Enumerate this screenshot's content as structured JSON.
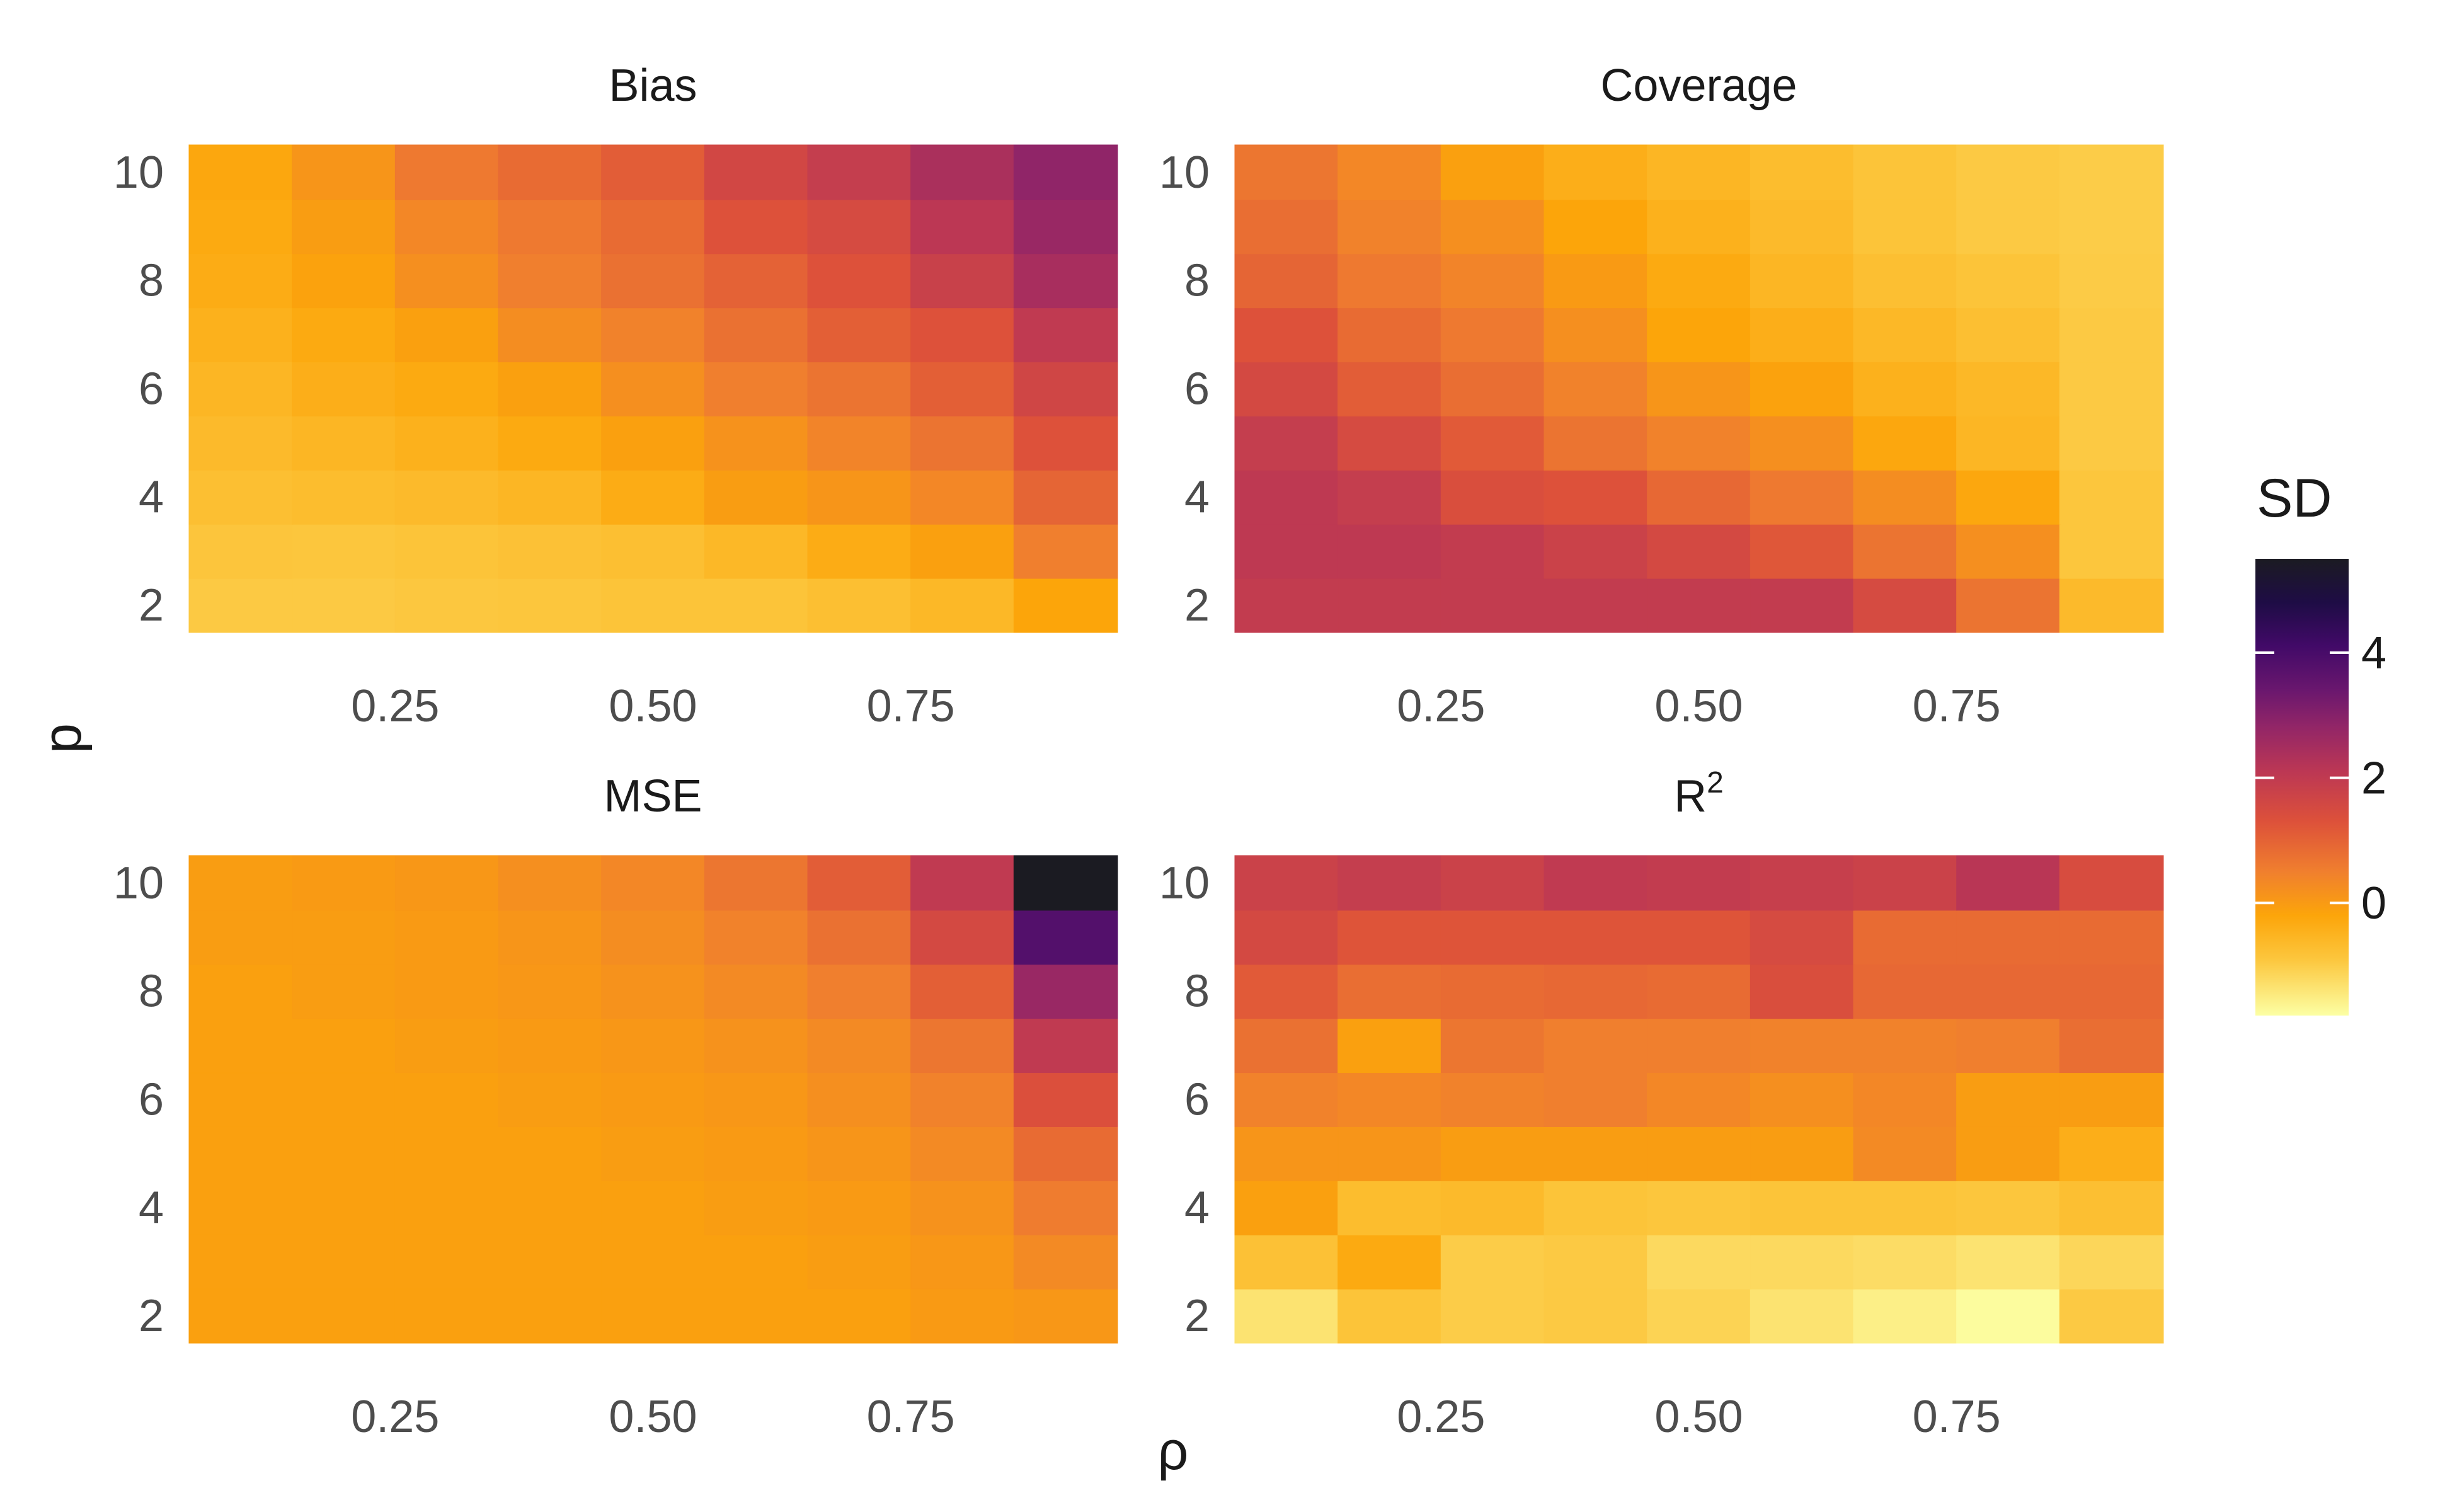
{
  "chart_data": {
    "type": "heatmap",
    "xlabel": "ρ",
    "ylabel": "p",
    "x": [
      0.1,
      0.2,
      0.3,
      0.4,
      0.5,
      0.6,
      0.7,
      0.8,
      0.9
    ],
    "y": [
      2,
      3,
      4,
      5,
      6,
      7,
      8,
      9,
      10
    ],
    "xticks": [
      0.25,
      0.5,
      0.75
    ],
    "xtick_labels": [
      "0.25",
      "0.50",
      "0.75"
    ],
    "yticks": [
      2,
      4,
      6,
      8,
      10
    ],
    "ytick_labels": [
      "2",
      "4",
      "6",
      "8",
      "10"
    ],
    "xlim": [
      0.05,
      0.95
    ],
    "ylim": [
      1.5,
      10.5
    ],
    "legend": {
      "title": "SD",
      "position": "right",
      "min": -1.8,
      "max": 5.5,
      "ticks": [
        0,
        2,
        4
      ],
      "tick_labels": [
        "0",
        "2",
        "4"
      ],
      "colors": [
        "#FCFFA4",
        "#FCC63D",
        "#FCA50A",
        "#F07F2E",
        "#DD513A",
        "#BC3754",
        "#932667",
        "#6A176E",
        "#420A68",
        "#1E0C45",
        "#1B1B22"
      ],
      "stops": [
        -1.8,
        -0.9,
        -0.2,
        0.5,
        1.3,
        2.1,
        2.8,
        3.4,
        4.1,
        4.8,
        5.5
      ]
    },
    "panels": [
      {
        "title": "Bias",
        "values": [
          [
            -0.95,
            -0.95,
            -0.92,
            -0.9,
            -0.85,
            -0.85,
            -0.75,
            -0.6,
            -0.2
          ],
          [
            -0.88,
            -0.9,
            -0.85,
            -0.8,
            -0.75,
            -0.6,
            -0.35,
            -0.1,
            0.5
          ],
          [
            -0.75,
            -0.7,
            -0.65,
            -0.55,
            -0.35,
            -0.05,
            0.1,
            0.35,
            0.95
          ],
          [
            -0.65,
            -0.55,
            -0.45,
            -0.3,
            -0.1,
            0.15,
            0.4,
            0.7,
            1.3
          ],
          [
            -0.55,
            -0.4,
            -0.3,
            -0.1,
            0.2,
            0.5,
            0.7,
            1.05,
            1.65
          ],
          [
            -0.45,
            -0.3,
            -0.1,
            0.25,
            0.45,
            0.75,
            1.05,
            1.3,
            2.0
          ],
          [
            -0.35,
            -0.15,
            0.2,
            0.5,
            0.75,
            1.0,
            1.3,
            1.8,
            2.45
          ],
          [
            -0.3,
            -0.05,
            0.35,
            0.6,
            0.85,
            1.3,
            1.5,
            2.1,
            2.7
          ],
          [
            -0.25,
            0.1,
            0.6,
            0.85,
            1.1,
            1.6,
            1.9,
            2.4,
            2.85
          ]
        ]
      },
      {
        "title": "Coverage",
        "values": [
          [
            1.95,
            1.95,
            1.95,
            1.95,
            1.95,
            1.95,
            1.5,
            0.7,
            -0.65
          ],
          [
            2.05,
            2.05,
            1.95,
            1.75,
            1.55,
            1.2,
            0.7,
            0.2,
            -0.9
          ],
          [
            2.05,
            1.9,
            1.4,
            1.3,
            0.9,
            0.6,
            0.25,
            -0.25,
            -0.9
          ],
          [
            1.9,
            1.5,
            1.15,
            0.7,
            0.45,
            0.2,
            -0.25,
            -0.55,
            -0.95
          ],
          [
            1.55,
            1.1,
            0.8,
            0.45,
            0.1,
            -0.15,
            -0.45,
            -0.6,
            -0.95
          ],
          [
            1.3,
            0.85,
            0.6,
            0.2,
            -0.2,
            -0.4,
            -0.6,
            -0.75,
            -0.95
          ],
          [
            0.95,
            0.6,
            0.4,
            0.0,
            -0.3,
            -0.55,
            -0.75,
            -0.85,
            -0.98
          ],
          [
            0.8,
            0.45,
            0.2,
            -0.2,
            -0.45,
            -0.65,
            -0.85,
            -0.95,
            -1.0
          ],
          [
            0.65,
            0.35,
            -0.1,
            -0.4,
            -0.55,
            -0.7,
            -0.85,
            -0.95,
            -1.0
          ]
        ]
      },
      {
        "title": "MSE",
        "values": [
          [
            -0.1,
            -0.1,
            -0.1,
            -0.1,
            -0.1,
            -0.1,
            -0.1,
            0.0,
            0.05
          ],
          [
            -0.1,
            -0.1,
            -0.1,
            -0.1,
            -0.1,
            -0.1,
            -0.05,
            0.05,
            0.3
          ],
          [
            -0.1,
            -0.1,
            -0.1,
            -0.1,
            -0.1,
            -0.05,
            0.0,
            0.15,
            0.55
          ],
          [
            -0.1,
            -0.1,
            -0.1,
            -0.1,
            -0.05,
            0.0,
            0.1,
            0.3,
            0.85
          ],
          [
            -0.1,
            -0.1,
            -0.1,
            -0.05,
            0.0,
            0.05,
            0.2,
            0.45,
            1.35
          ],
          [
            -0.1,
            -0.1,
            -0.05,
            0.0,
            0.05,
            0.15,
            0.3,
            0.65,
            2.0
          ],
          [
            -0.1,
            -0.05,
            0.0,
            0.05,
            0.15,
            0.3,
            0.5,
            1.05,
            2.7
          ],
          [
            -0.05,
            -0.05,
            0.0,
            0.1,
            0.25,
            0.45,
            0.75,
            1.55,
            3.8
          ],
          [
            -0.05,
            0.0,
            0.05,
            0.2,
            0.35,
            0.65,
            1.1,
            2.0,
            5.5
          ]
        ]
      },
      {
        "title": "R^2",
        "values": [
          [
            -1.35,
            -0.85,
            -1.0,
            -0.95,
            -1.1,
            -1.35,
            -1.55,
            -1.75,
            -0.95
          ],
          [
            -0.8,
            -0.3,
            -1.0,
            -0.95,
            -1.2,
            -1.2,
            -1.25,
            -1.35,
            -1.15
          ],
          [
            -0.1,
            -0.7,
            -0.65,
            -0.85,
            -0.9,
            -0.85,
            -0.85,
            -0.9,
            -0.75
          ],
          [
            0.1,
            0.1,
            -0.05,
            -0.05,
            -0.05,
            -0.05,
            0.3,
            -0.05,
            -0.4
          ],
          [
            0.45,
            0.35,
            0.45,
            0.5,
            0.35,
            0.2,
            0.35,
            -0.05,
            -0.05
          ],
          [
            0.75,
            -0.1,
            0.65,
            0.5,
            0.5,
            0.45,
            0.45,
            0.5,
            0.8
          ],
          [
            1.15,
            0.8,
            0.85,
            0.9,
            0.85,
            1.4,
            0.9,
            0.9,
            0.9
          ],
          [
            1.55,
            1.25,
            1.25,
            1.25,
            1.25,
            1.5,
            0.85,
            0.85,
            0.85
          ],
          [
            1.75,
            1.9,
            1.75,
            2.0,
            1.95,
            1.85,
            1.75,
            2.15,
            1.45
          ]
        ]
      }
    ]
  }
}
